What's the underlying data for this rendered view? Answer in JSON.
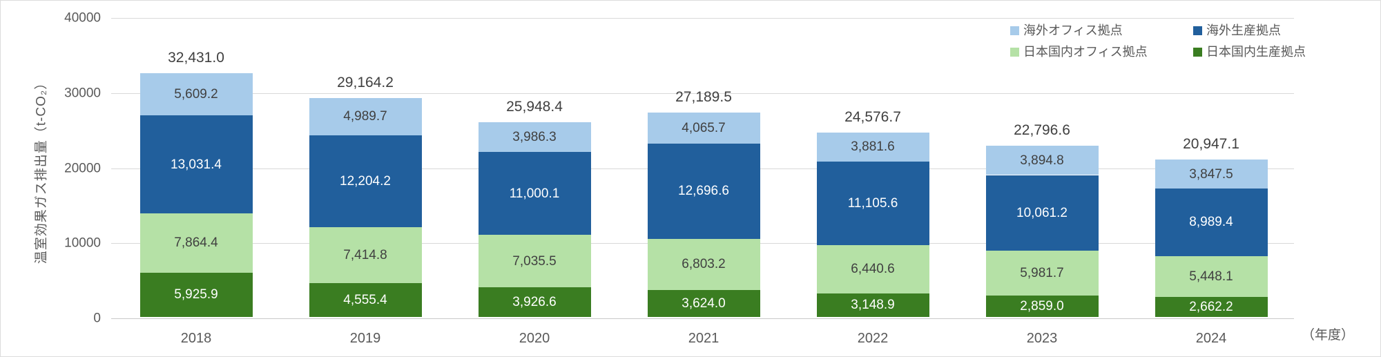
{
  "chart_data": {
    "type": "bar",
    "stacked": true,
    "categories": [
      "2018",
      "2019",
      "2020",
      "2021",
      "2022",
      "2023",
      "2024"
    ],
    "series": [
      {
        "key": "domestic-production",
        "name": "日本国内生産拠点",
        "color": "#3a7d21",
        "label_color": "#ffffff",
        "values": [
          5925.9,
          4555.4,
          3926.6,
          3624.0,
          3148.9,
          2859.0,
          2662.2
        ]
      },
      {
        "key": "domestic-office",
        "name": "日本国内オフィス拠点",
        "color": "#b5e1a6",
        "label_color": "#404040",
        "values": [
          7864.4,
          7414.8,
          7035.5,
          6803.2,
          6440.6,
          5981.7,
          5448.1
        ]
      },
      {
        "key": "overseas-production",
        "name": "海外生産拠点",
        "color": "#215f9c",
        "label_color": "#ffffff",
        "values": [
          13031.4,
          12204.2,
          11000.1,
          12696.6,
          11105.6,
          10061.2,
          8989.4
        ]
      },
      {
        "key": "overseas-office",
        "name": "海外オフィス拠点",
        "color": "#a7cbea",
        "label_color": "#404040",
        "values": [
          5609.2,
          4989.7,
          3986.3,
          4065.7,
          3881.6,
          3894.8,
          3847.5
        ]
      }
    ],
    "totals": [
      32431.0,
      29164.2,
      25948.4,
      27189.5,
      24576.7,
      22796.6,
      20947.1
    ],
    "legend": [
      {
        "key": "overseas-office",
        "label": "海外オフィス拠点",
        "color": "#a7cbea"
      },
      {
        "key": "overseas-production",
        "label": "海外生産拠点",
        "color": "#215f9c"
      },
      {
        "key": "domestic-office",
        "label": "日本国内オフィス拠点",
        "color": "#b5e1a6"
      },
      {
        "key": "domestic-production",
        "label": "日本国内生産拠点",
        "color": "#3a7d21"
      }
    ],
    "ylabel": "温室効果ガス排出量（t-CO₂）",
    "xlabel_suffix": "（年度）",
    "y_ticks": [
      0,
      10000,
      20000,
      30000,
      40000
    ],
    "ylim": [
      0,
      40000
    ],
    "grid": true,
    "legend_position": "top-right"
  }
}
